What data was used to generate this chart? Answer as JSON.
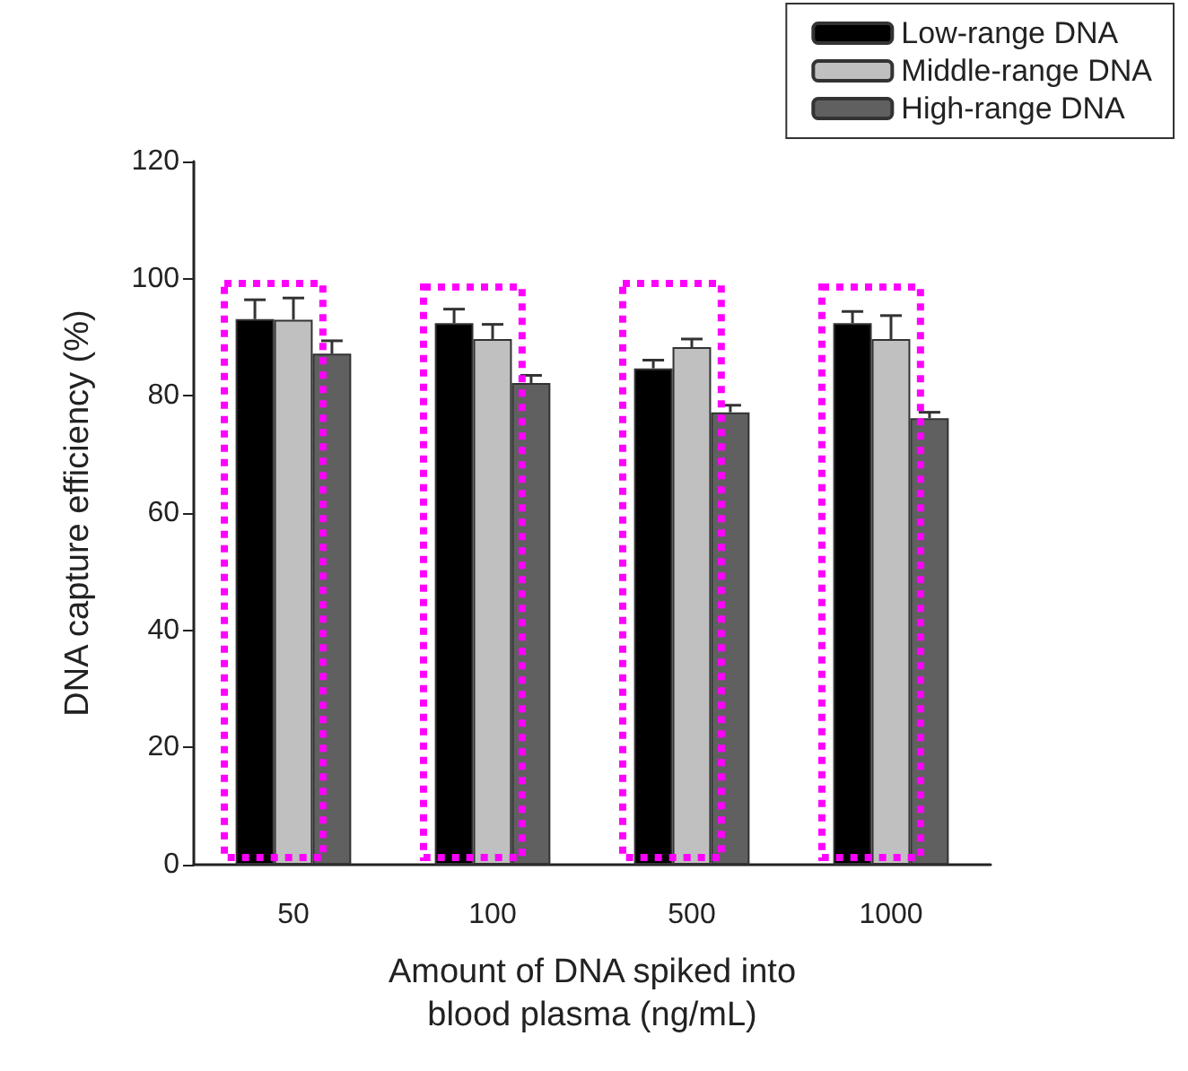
{
  "chart_data": {
    "type": "bar",
    "xlabel": "Amount of DNA spiked into\nblood plasma (ng/mL)",
    "ylabel": "DNA capture efficiency (%)",
    "categories": [
      "50",
      "100",
      "500",
      "1000"
    ],
    "series": [
      {
        "name": "Low-range DNA",
        "color": "#000000",
        "values": [
          93.1,
          92.4,
          84.7,
          92.4
        ],
        "errors": [
          3.3,
          2.4,
          1.4,
          2.0
        ]
      },
      {
        "name": "Middle-range DNA",
        "color": "#c0c0c0",
        "values": [
          93.0,
          89.7,
          88.3,
          89.7
        ],
        "errors": [
          3.7,
          2.5,
          1.4,
          4.0
        ]
      },
      {
        "name": "High-range DNA",
        "color": "#606060",
        "values": [
          87.2,
          82.2,
          77.2,
          76.2
        ],
        "errors": [
          2.2,
          1.3,
          1.2,
          1.0
        ]
      }
    ],
    "ylim": [
      0,
      120
    ],
    "yticks": [
      0,
      20,
      40,
      60,
      80,
      100,
      120
    ],
    "grid": false,
    "legend": "top right"
  }
}
